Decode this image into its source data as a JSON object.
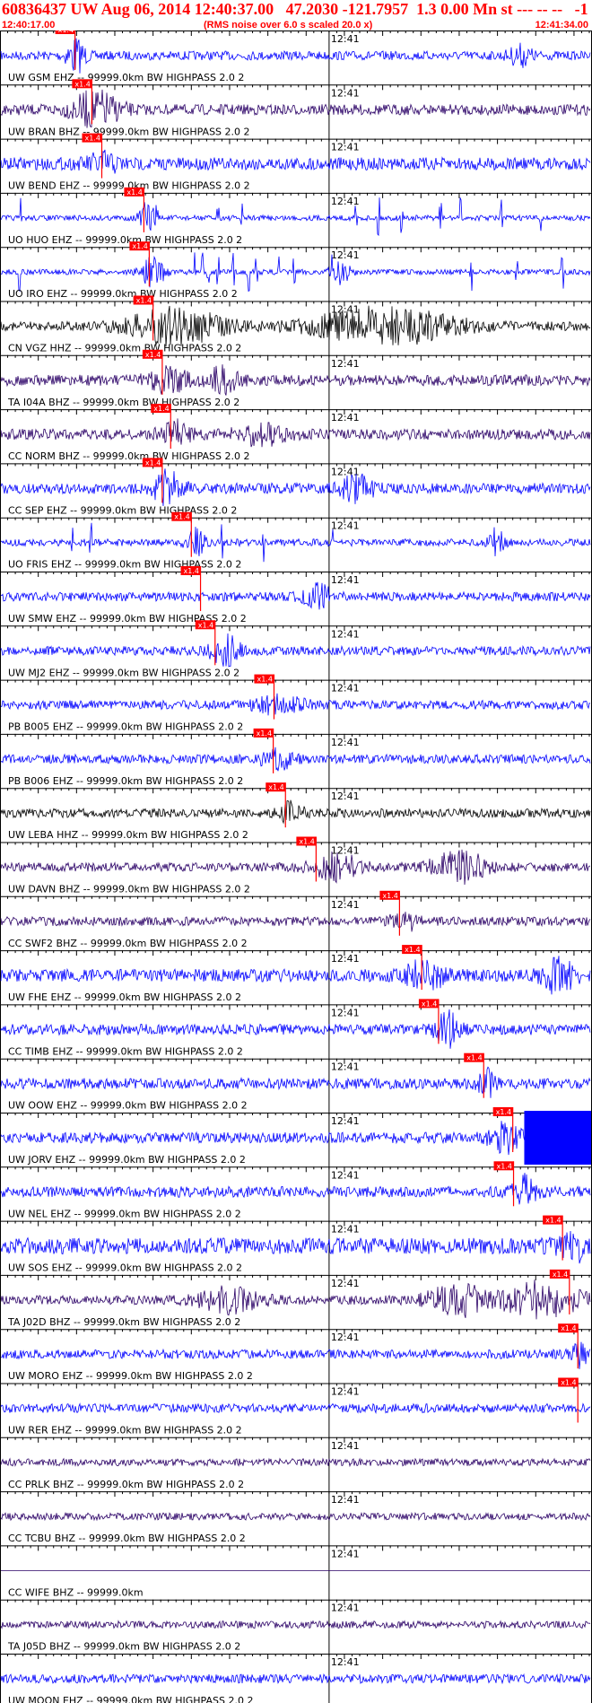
{
  "header": {
    "title": "60836437 UW Aug 06, 2014 12:40:37.00   47.2030 -121.7957  1.3 0.00 Mn st --- -- --   -1",
    "start_time": "12:40:17.00",
    "note": "(RMS noise over 6.0 s scaled 20.0 x)",
    "end_time": "12:41:34.00"
  },
  "chart_data": {
    "type": "seismogram",
    "time_range": [
      "12:40:17.00",
      "12:41:34.00"
    ],
    "minute_mark_label": "12:41",
    "minute_mark_seconds": 43,
    "duration_seconds": 77,
    "pick_label": "x1.4",
    "pick_color": "#ff0000",
    "traces": [
      {
        "label": "UW GSM EHZ -- 99999.0km BW  HIGHPASS  2.0  2",
        "color": "#0000ff",
        "pick_s": 9.8,
        "amp": 0.25,
        "bursts": [
          {
            "t": 9.9,
            "a": 0.9,
            "w": 1.2
          },
          {
            "t": 68,
            "a": 0.5,
            "w": 1.5
          }
        ]
      },
      {
        "label": "UW BRAN BHZ -- 99999.0km BW  HIGHPASS  2.0  2",
        "color": "#2a0066",
        "pick_s": 12.0,
        "amp": 0.3,
        "bursts": [
          {
            "t": 12.5,
            "a": 0.95,
            "w": 3
          }
        ]
      },
      {
        "label": "UW BEND EHZ -- 99999.0km BW  HIGHPASS  2.0  2",
        "color": "#0000ff",
        "pick_s": 13.3,
        "amp": 0.35,
        "bursts": [
          {
            "t": 13.5,
            "a": 0.5,
            "w": 2
          }
        ]
      },
      {
        "label": "UO HUO EHZ -- 99999.0km BW  HIGHPASS  2.0  2",
        "color": "#0000ff",
        "pick_s": 18.8,
        "amp": 0.15,
        "bursts": [
          {
            "t": 19.2,
            "a": 0.9,
            "w": 1
          }
        ],
        "spikes": [
          2.8,
          20.5,
          28.5,
          31.5,
          46.5,
          49.5,
          52.5,
          57.5,
          60.2,
          65.5,
          70.5
        ]
      },
      {
        "label": "UO IRO EHZ -- 99999.0km BW  HIGHPASS  2.0  2",
        "color": "#0000ff",
        "pick_s": 19.5,
        "amp": 0.15,
        "bursts": [
          {
            "t": 20,
            "a": 0.8,
            "w": 1.5
          },
          {
            "t": 44.5,
            "a": 0.7,
            "w": 1.2
          }
        ],
        "spikes": [
          2.5,
          25.5,
          26.5,
          27.2,
          28.5,
          30.5,
          32.5,
          33.5,
          36.5,
          38.5,
          43.5,
          45.5,
          61.5,
          67.5,
          73.5
        ]
      },
      {
        "label": "CN VGZ HHZ -- 99999.0km BW  HIGHPASS  2.0  2",
        "color": "#000000",
        "pick_s": 20.0,
        "amp": 0.25,
        "bursts": [
          {
            "t": 23,
            "a": 0.95,
            "w": 6
          },
          {
            "t": 50,
            "a": 1.0,
            "w": 9
          }
        ]
      },
      {
        "label": "TA I04A BHZ -- 99999.0km BW  HIGHPASS  2.0  2",
        "color": "#2a0066",
        "pick_s": 21.2,
        "amp": 0.3,
        "bursts": [
          {
            "t": 22,
            "a": 0.6,
            "w": 2.5
          },
          {
            "t": 29,
            "a": 0.7,
            "w": 2
          }
        ]
      },
      {
        "label": "CC NORM BHZ -- 99999.0km BW  HIGHPASS  2.0  2",
        "color": "#2a0066",
        "pick_s": 22.3,
        "amp": 0.3,
        "bursts": [
          {
            "t": 23,
            "a": 0.6,
            "w": 2
          },
          {
            "t": 34,
            "a": 0.5,
            "w": 3
          }
        ]
      },
      {
        "label": "CC SEP EHZ -- 99999.0km BW  HIGHPASS  2.0  2",
        "color": "#0000ff",
        "pick_s": 21.2,
        "amp": 0.3,
        "bursts": [
          {
            "t": 22,
            "a": 0.9,
            "w": 1.8
          },
          {
            "t": 46.5,
            "a": 0.75,
            "w": 2
          }
        ]
      },
      {
        "label": "UO FRIS EHZ -- 99999.0km BW  HIGHPASS  2.0  2",
        "color": "#0000ff",
        "pick_s": 25.0,
        "amp": 0.2,
        "bursts": [
          {
            "t": 25.5,
            "a": 0.7,
            "w": 1.2
          },
          {
            "t": 65,
            "a": 0.8,
            "w": 1
          }
        ],
        "spikes": [
          9.5,
          11.8,
          29,
          34.5,
          43.5
        ]
      },
      {
        "label": "UW SMW EHZ -- 99999.0km BW  HIGHPASS  2.0  2",
        "color": "#0000ff",
        "pick_s": 26.2,
        "amp": 0.25,
        "bursts": [
          {
            "t": 41.5,
            "a": 0.6,
            "w": 2
          }
        ]
      },
      {
        "label": "UW MJ2 EHZ -- 99999.0km BW  HIGHPASS  2.0  2",
        "color": "#0000ff",
        "pick_s": 28.1,
        "amp": 0.25,
        "bursts": [
          {
            "t": 29.5,
            "a": 0.75,
            "w": 2
          }
        ]
      },
      {
        "label": "PB B005 EHZ -- 99999.0km BW  HIGHPASS  2.0  2",
        "color": "#0000ff",
        "pick_s": 35.8,
        "amp": 0.25,
        "bursts": [
          {
            "t": 36.5,
            "a": 0.45,
            "w": 3
          }
        ]
      },
      {
        "label": "PB B006 EHZ -- 99999.0km BW  HIGHPASS  2.0  2",
        "color": "#0000ff",
        "pick_s": 35.7,
        "amp": 0.25,
        "bursts": [
          {
            "t": 36.3,
            "a": 0.5,
            "w": 2
          }
        ]
      },
      {
        "label": "UW LEBA HHZ -- 99999.0km BW  HIGHPASS  2.0  2",
        "color": "#000000",
        "pick_s": 37.3,
        "amp": 0.25,
        "bursts": [
          {
            "t": 38,
            "a": 0.5,
            "w": 1.5
          }
        ]
      },
      {
        "label": "UW DAVN BHZ -- 99999.0km BW  HIGHPASS  2.0  2",
        "color": "#2a0066",
        "pick_s": 41.3,
        "amp": 0.25,
        "bursts": [
          {
            "t": 44,
            "a": 0.7,
            "w": 3
          },
          {
            "t": 60,
            "a": 0.85,
            "w": 3.5
          }
        ]
      },
      {
        "label": "CC SWF2 BHZ -- 99999.0km BW  HIGHPASS  2.0  2",
        "color": "#2a0066",
        "pick_s": 52.2,
        "amp": 0.25,
        "bursts": [
          {
            "t": 53,
            "a": 0.4,
            "w": 2
          }
        ]
      },
      {
        "label": "UW FHE EHZ -- 99999.0km BW  HIGHPASS  2.0  2",
        "color": "#0000ff",
        "pick_s": 55.1,
        "amp": 0.35,
        "bursts": [
          {
            "t": 55.5,
            "a": 0.7,
            "w": 2.5
          },
          {
            "t": 73,
            "a": 0.9,
            "w": 2
          }
        ]
      },
      {
        "label": "CC TIMB EHZ -- 99999.0km BW  HIGHPASS  2.0  2",
        "color": "#0000ff",
        "pick_s": 57.3,
        "amp": 0.3,
        "bursts": [
          {
            "t": 58.5,
            "a": 0.9,
            "w": 1.5
          }
        ]
      },
      {
        "label": "UW OOW EHZ -- 99999.0km BW  HIGHPASS  2.0  2",
        "color": "#0000ff",
        "pick_s": 63.2,
        "amp": 0.3,
        "bursts": [
          {
            "t": 63.5,
            "a": 0.8,
            "w": 1
          }
        ]
      },
      {
        "label": "UW JORV EHZ -- 99999.0km BW  HIGHPASS  2.0  2",
        "color": "#0000ff",
        "pick_s": 67.0,
        "amp": 0.3,
        "bursts": [
          {
            "t": 66,
            "a": 0.8,
            "w": 2
          }
        ],
        "saturated_from_s": 68.5
      },
      {
        "label": "UW NEL EHZ -- 99999.0km BW  HIGHPASS  2.0  2",
        "color": "#0000ff",
        "pick_s": 67.1,
        "amp": 0.3,
        "bursts": [
          {
            "t": 68.5,
            "a": 0.8,
            "w": 1.5
          }
        ]
      },
      {
        "label": "UW SOS EHZ -- 99999.0km BW  HIGHPASS  2.0  2",
        "color": "#0000ff",
        "pick_s": 73.5,
        "amp": 0.45,
        "bursts": [
          {
            "t": 75,
            "a": 0.6,
            "w": 2
          }
        ]
      },
      {
        "label": "TA J02D BHZ -- 99999.0km BW  HIGHPASS  2.0  2",
        "color": "#2a0066",
        "pick_s": 74.4,
        "amp": 0.25,
        "bursts": [
          {
            "t": 30,
            "a": 0.6,
            "w": 4
          },
          {
            "t": 60,
            "a": 0.8,
            "w": 4
          },
          {
            "t": 71,
            "a": 1.0,
            "w": 5
          }
        ]
      },
      {
        "label": "UW MORO EHZ -- 99999.0km BW  HIGHPASS  2.0  2",
        "color": "#0000ff",
        "pick_s": 75.5,
        "amp": 0.25,
        "bursts": [
          {
            "t": 75.5,
            "a": 0.6,
            "w": 1.5
          }
        ]
      },
      {
        "label": "UW RER EHZ -- 99999.0km BW  HIGHPASS  2.0  2",
        "color": "#0000ff",
        "pick_s": 75.5,
        "amp": 0.25,
        "bursts": []
      },
      {
        "label": "CC PRLK BHZ -- 99999.0km BW  HIGHPASS  2.0  2",
        "color": "#2a0066",
        "pick_s": null,
        "amp": 0.2,
        "bursts": []
      },
      {
        "label": "CC TCBU BHZ -- 99999.0km BW  HIGHPASS  2.0  2",
        "color": "#2a0066",
        "pick_s": null,
        "amp": 0.2,
        "bursts": []
      },
      {
        "label": "CC WIFE BHZ -- 99999.0km",
        "color": "#2a0066",
        "pick_s": null,
        "amp": 0,
        "bursts": []
      },
      {
        "label": "TA J05D BHZ -- 99999.0km BW  HIGHPASS  2.0  2",
        "color": "#2a0066",
        "pick_s": null,
        "amp": 0.2,
        "bursts": []
      },
      {
        "label": "UW MOON EHZ -- 99999.0km BW  HIGHPASS  2.0  2",
        "color": "#0000ff",
        "pick_s": null,
        "amp": 0.25,
        "bursts": []
      }
    ]
  }
}
